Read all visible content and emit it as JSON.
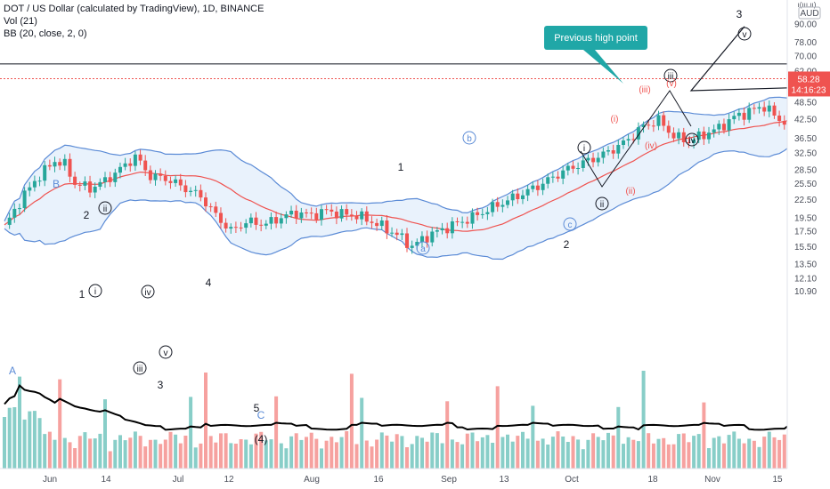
{
  "legend": {
    "symbol": "DOT / US Dollar (calculated by TradingView), 1D, BINANCE",
    "vol": "Vol (21)",
    "bb": "BB (20, close, 2, 0)"
  },
  "axis": {
    "currency_small": "ı(ııı.ıı)",
    "currency": "AUD",
    "price_label": "58.28",
    "countdown": "14:16:23",
    "ticks": [
      "90.00",
      "78.00",
      "70.00",
      "62.00",
      "55.00",
      "48.50",
      "42.50",
      "36.50",
      "32.50",
      "28.50",
      "25.50",
      "22.50",
      "19.50",
      "17.50",
      "15.50",
      "13.50",
      "12.10",
      "10.90"
    ],
    "dates": [
      "Jun",
      "14",
      "Jul",
      "12",
      "Aug",
      "16",
      "Sep",
      "13",
      "Oct",
      "18",
      "Nov",
      "15"
    ]
  },
  "callout": "Previous high point",
  "colors": {
    "up": "#26a69a",
    "down": "#ef5350",
    "bb_band": "#5b8bd6",
    "bb_fill": "#e9f2fc",
    "basis": "#ef5350",
    "price_line": "#ef5350"
  },
  "labels": {
    "A": "A",
    "B": "B",
    "C": "C",
    "w1": "1",
    "w2": "2",
    "w3": "3",
    "w4": "4",
    "w5": "5",
    "i": "i",
    "ii": "ii",
    "iii": "iii",
    "iv": "iv",
    "v": "v",
    "a": "a",
    "b": "b",
    "c": "c",
    "one": "1",
    "two": "2",
    "three": "3",
    "pi": "(i)",
    "pii": "(ii)",
    "piii": "(iii)",
    "piv": "(iv)",
    "pv": "(v)",
    "p4": "(4)"
  },
  "chart_data": {
    "type": "candlestick",
    "title": "DOT / US Dollar (calculated by TradingView), 1D, BINANCE",
    "y_scale": "log",
    "resistance_level": 65.5,
    "last_price": 58.28,
    "projection_points": [
      64.5,
      53.0,
      88.0
    ],
    "bollinger": {
      "period": 20,
      "source": "close",
      "stddev": 2,
      "offset": 0
    },
    "volume_ma_period": 21,
    "series": [
      {
        "name": "Vol",
        "values": []
      },
      {
        "name": "BB",
        "values": []
      }
    ]
  }
}
